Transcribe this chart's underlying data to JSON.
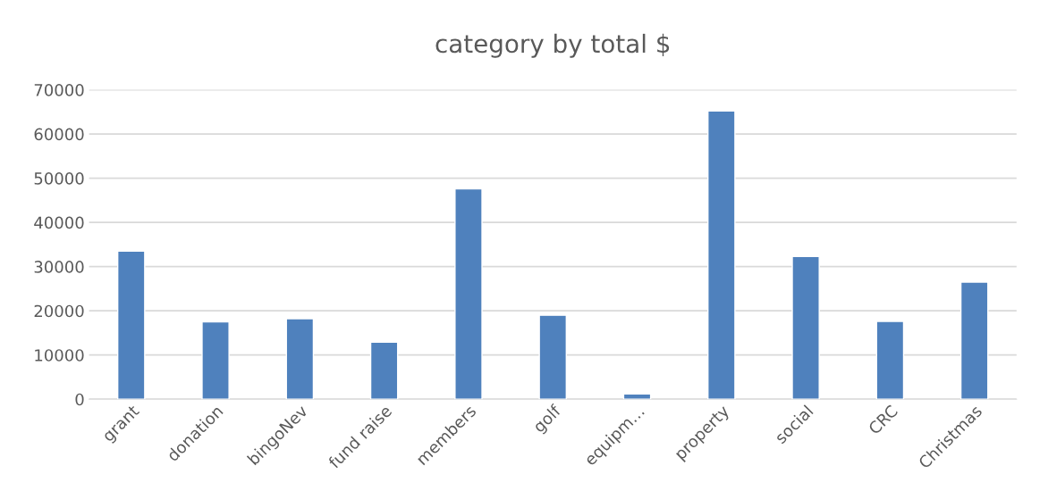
{
  "chart_data": {
    "type": "bar",
    "title": "category by total $",
    "categories": [
      "grant",
      "donation",
      "bingoNev",
      "fund raise",
      "members",
      "golf",
      "equipm…",
      "property",
      "social",
      "CRC",
      "Christmas"
    ],
    "values": [
      33500,
      17500,
      18200,
      12900,
      47600,
      19000,
      1200,
      65200,
      32300,
      17600,
      26500
    ],
    "color": "#4f81bd",
    "ylim": [
      0,
      70000
    ],
    "yticks": [
      0,
      10000,
      20000,
      30000,
      40000,
      50000,
      60000,
      70000
    ],
    "grid": "y"
  }
}
